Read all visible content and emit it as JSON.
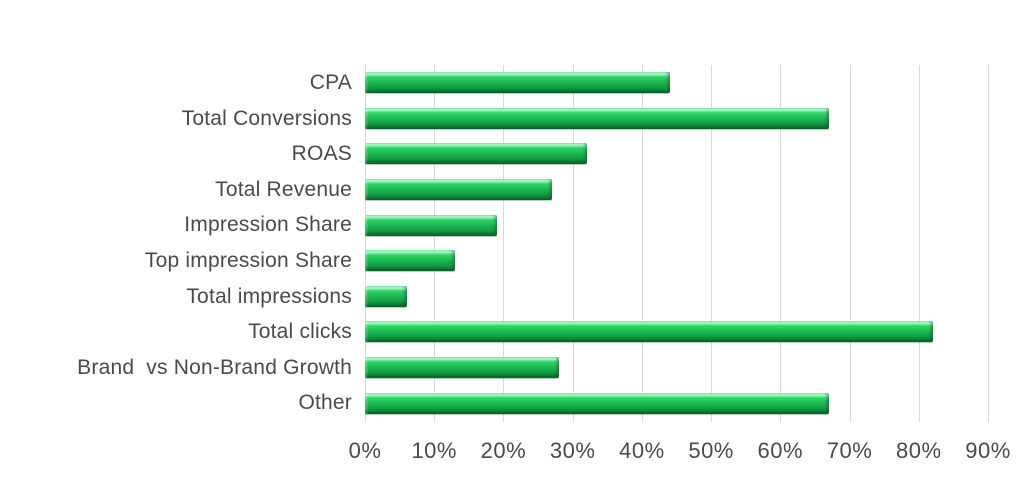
{
  "colors": {
    "background": "#ffffff",
    "bar_green": "#1cb953",
    "bar_highlight": "#a5f4c2",
    "bar_shadow": "#0a6f2d",
    "gridline": "#d9d9d9",
    "text": "#4a4a4a"
  },
  "chart_data": {
    "type": "bar",
    "orientation": "horizontal",
    "title": "",
    "xlabel": "",
    "ylabel": "",
    "categories": [
      "CPA",
      "Total Conversions",
      "ROAS",
      "Total Revenue",
      "Impression Share",
      "Top impression Share",
      "Total impressions",
      "Total clicks",
      "Brand  vs Non-Brand Growth",
      "Other"
    ],
    "values": [
      44,
      67,
      32,
      27,
      19,
      13,
      6,
      82,
      28,
      67
    ],
    "unit": "%",
    "x_ticks": [
      "0%",
      "10%",
      "20%",
      "30%",
      "40%",
      "50%",
      "60%",
      "70%",
      "80%",
      "90%"
    ],
    "xlim": [
      0,
      90
    ],
    "grid": "vertical",
    "legend": "none"
  }
}
